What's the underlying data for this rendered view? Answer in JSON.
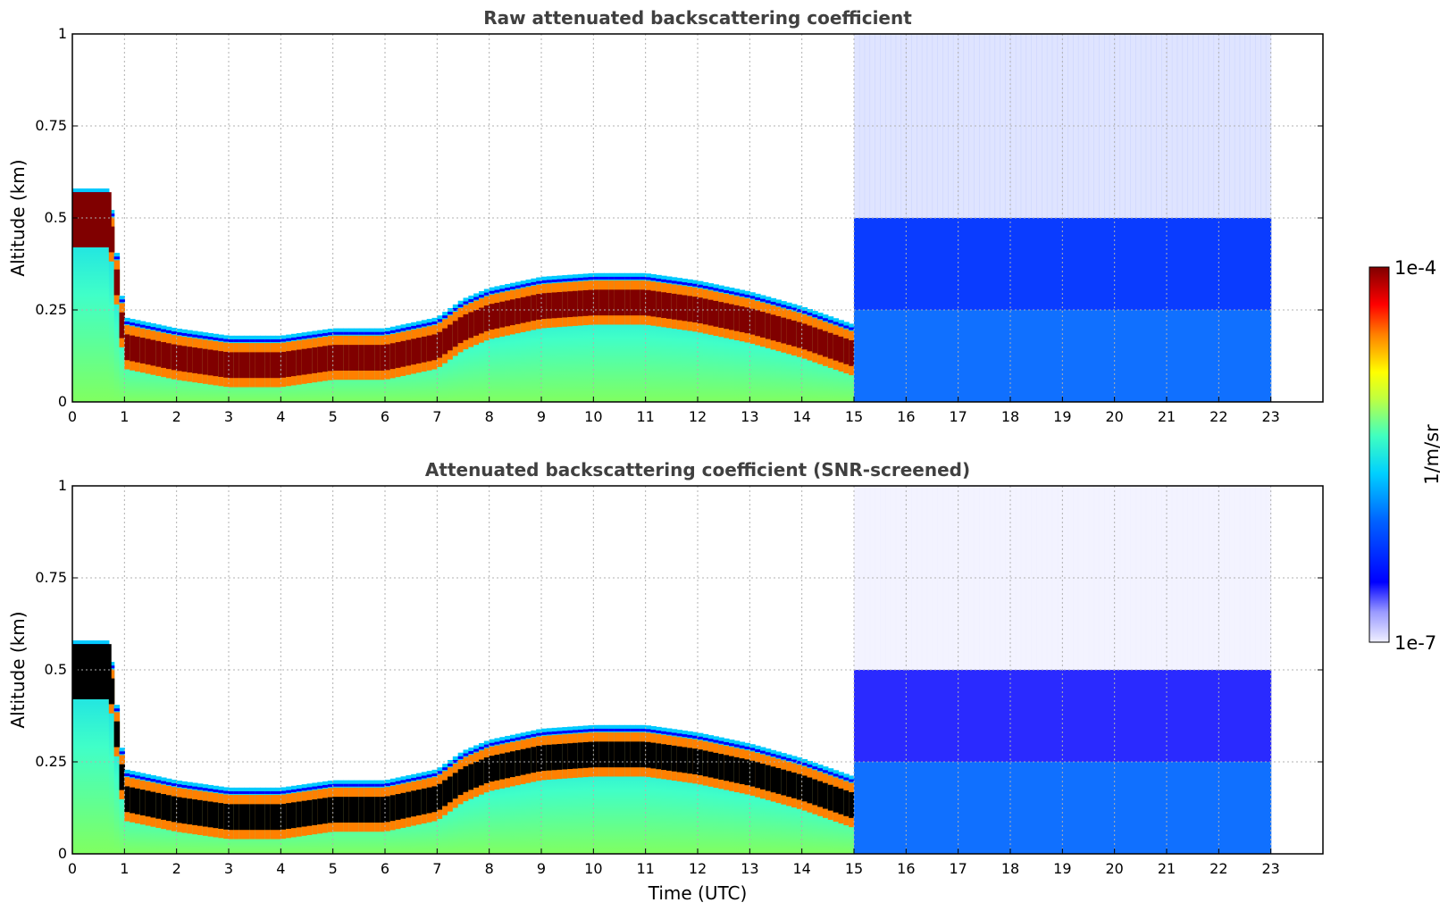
{
  "chart_data": [
    {
      "type": "heatmap",
      "title": "Raw attenuated backscattering coefficient",
      "xlabel": "",
      "ylabel": "Altitude (km)",
      "xlim": [
        0,
        24
      ],
      "ylim": [
        0,
        1
      ],
      "xticks": [
        0,
        1,
        2,
        3,
        4,
        5,
        6,
        7,
        8,
        9,
        10,
        11,
        12,
        13,
        14,
        15,
        16,
        17,
        18,
        19,
        20,
        21,
        22,
        23
      ],
      "yticks": [
        0,
        0.25,
        0.5,
        0.75,
        1
      ],
      "ytick_labels": [
        "0",
        "0.25",
        "0.5",
        "0.75",
        "1"
      ],
      "grid": true,
      "data_extent_hours": [
        0,
        23
      ],
      "screening": "raw",
      "layers": [
        {
          "name": "boundary-layer-top",
          "hours": [
            0,
            0.7,
            1,
            2,
            3,
            4,
            5,
            6,
            7,
            7.5,
            8,
            9,
            10,
            11,
            12,
            13,
            14,
            15
          ],
          "altitude_km": [
            0.5,
            0.5,
            0.15,
            0.12,
            0.1,
            0.1,
            0.12,
            0.12,
            0.15,
            0.2,
            0.23,
            0.26,
            0.27,
            0.27,
            0.25,
            0.22,
            0.18,
            0.13
          ]
        }
      ]
    },
    {
      "type": "heatmap",
      "title": "Attenuated backscattering coefficient (SNR-screened)",
      "xlabel": "Time (UTC)",
      "ylabel": "Altitude (km)",
      "xlim": [
        0,
        24
      ],
      "ylim": [
        0,
        1
      ],
      "xticks": [
        0,
        1,
        2,
        3,
        4,
        5,
        6,
        7,
        8,
        9,
        10,
        11,
        12,
        13,
        14,
        15,
        16,
        17,
        18,
        19,
        20,
        21,
        22,
        23
      ],
      "yticks": [
        0,
        0.25,
        0.5,
        0.75,
        1
      ],
      "ytick_labels": [
        "0",
        "0.25",
        "0.5",
        "0.75",
        "1"
      ],
      "grid": true,
      "data_extent_hours": [
        0,
        23
      ],
      "screening": "snr"
    }
  ],
  "colorbar": {
    "label": "1/m/sr",
    "max_label": "1e-4",
    "min_label": "1e-7",
    "colormap": "jet",
    "colors": [
      "#e8e8ff",
      "#0000ff",
      "#00ccff",
      "#80ff80",
      "#ffff00",
      "#ff4000",
      "#800000"
    ],
    "saturated_color_screened": "#000000"
  }
}
